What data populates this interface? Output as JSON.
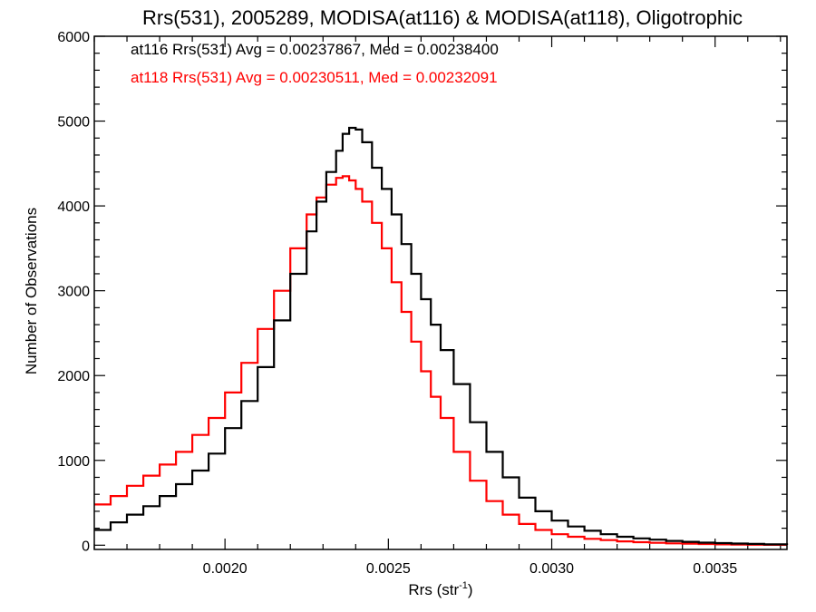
{
  "chart_data": {
    "type": "line",
    "step": true,
    "title": "Rrs(531), 2005289, MODISA(at116) & MODISA(at118), Oligotrophic",
    "xlabel_main": "Rrs (str",
    "xlabel_sup": "-1",
    "xlabel_end": ")",
    "ylabel": "Number of Observations",
    "xlim": [
      0.0016,
      0.00372
    ],
    "ylim": [
      -50,
      6000
    ],
    "x_ticks": [
      0.002,
      0.0025,
      0.003,
      0.0035
    ],
    "x_tick_labels": [
      "0.0020",
      "0.0025",
      "0.0030",
      "0.0035"
    ],
    "y_ticks": [
      0,
      1000,
      2000,
      3000,
      4000,
      5000,
      6000
    ],
    "y_tick_labels": [
      "0",
      "1000",
      "2000",
      "3000",
      "4000",
      "5000",
      "6000"
    ],
    "grid": false,
    "legend_position": "top-left",
    "series": [
      {
        "label": "at116 Rrs(531) Avg = 0.00237867, Med = 0.00238400",
        "color": "#000000",
        "x": [
          0.0016,
          0.00165,
          0.0017,
          0.00175,
          0.0018,
          0.00185,
          0.0019,
          0.00195,
          0.002,
          0.00205,
          0.0021,
          0.00215,
          0.0022,
          0.00225,
          0.00228,
          0.00231,
          0.00234,
          0.00236,
          0.00238,
          0.0024,
          0.00242,
          0.00245,
          0.00248,
          0.00251,
          0.00254,
          0.00257,
          0.0026,
          0.00263,
          0.00266,
          0.0027,
          0.00275,
          0.0028,
          0.00285,
          0.0029,
          0.00295,
          0.003,
          0.00305,
          0.0031,
          0.00315,
          0.0032,
          0.00325,
          0.0033,
          0.00335,
          0.0034,
          0.00345,
          0.0035,
          0.00355,
          0.0036,
          0.00365,
          0.00372
        ],
        "values": [
          180,
          270,
          360,
          460,
          580,
          720,
          880,
          1080,
          1380,
          1700,
          2100,
          2650,
          3200,
          3700,
          4050,
          4400,
          4650,
          4850,
          4920,
          4900,
          4750,
          4450,
          4200,
          3900,
          3550,
          3200,
          2900,
          2600,
          2300,
          1900,
          1450,
          1100,
          800,
          560,
          400,
          290,
          220,
          170,
          130,
          100,
          80,
          65,
          50,
          40,
          30,
          25,
          20,
          15,
          10,
          5
        ]
      },
      {
        "label": "at118 Rrs(531) Avg = 0.00230511, Med = 0.00232091",
        "color": "#ff0000",
        "x": [
          0.0016,
          0.00165,
          0.0017,
          0.00175,
          0.0018,
          0.00185,
          0.0019,
          0.00195,
          0.002,
          0.00205,
          0.0021,
          0.00215,
          0.0022,
          0.00225,
          0.00228,
          0.00231,
          0.00234,
          0.00236,
          0.00238,
          0.0024,
          0.00242,
          0.00245,
          0.00248,
          0.00251,
          0.00254,
          0.00257,
          0.0026,
          0.00263,
          0.00266,
          0.0027,
          0.00275,
          0.0028,
          0.00285,
          0.0029,
          0.00295,
          0.003,
          0.00305,
          0.0031,
          0.00315,
          0.0032,
          0.00325,
          0.0033,
          0.00335,
          0.0034,
          0.00345,
          0.0035,
          0.00355,
          0.0036,
          0.00365,
          0.00372
        ],
        "values": [
          480,
          580,
          700,
          820,
          950,
          1100,
          1300,
          1500,
          1800,
          2150,
          2550,
          3000,
          3500,
          3900,
          4100,
          4250,
          4330,
          4350,
          4300,
          4200,
          4050,
          3800,
          3500,
          3100,
          2750,
          2400,
          2050,
          1750,
          1500,
          1100,
          760,
          520,
          360,
          250,
          180,
          130,
          100,
          75,
          60,
          45,
          35,
          28,
          22,
          18,
          14,
          10,
          8,
          6,
          4,
          3
        ]
      }
    ]
  }
}
